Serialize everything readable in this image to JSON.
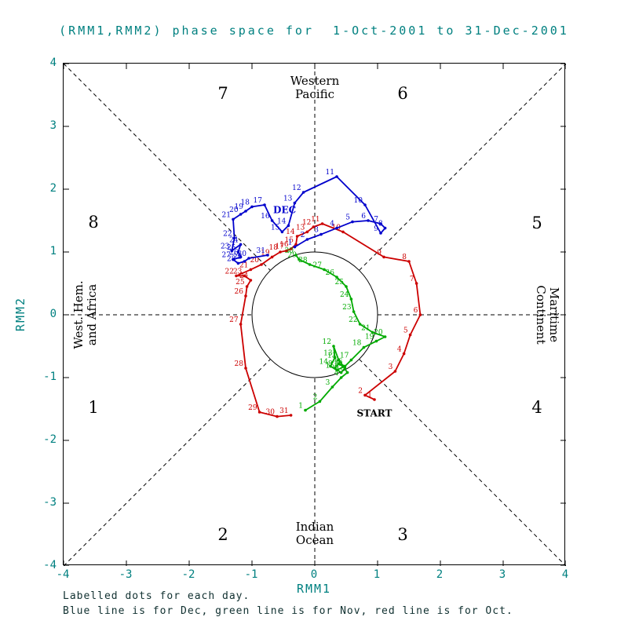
{
  "title": "(RMM1,RMM2) phase space for  1-Oct-2001 to 31-Dec-2001",
  "captions": [
    "Labelled dots for each day.",
    "Blue line is for Dec, green line is for Nov, red line is for Oct."
  ],
  "colors": {
    "title_text": "#008080",
    "frame": "#000000",
    "oct_line": "#cc0000",
    "nov_line": "#00aa00",
    "dec_line": "#0000cc"
  },
  "chart_data": {
    "type": "line",
    "title": "(RMM1,RMM2) phase space for  1-Oct-2001 to 31-Dec-2001",
    "xlabel": "RMM1",
    "ylabel": "RMM2",
    "xlim": [
      -4,
      4
    ],
    "ylim": [
      -4,
      4
    ],
    "ticks": [
      -4,
      -3,
      -2,
      -1,
      0,
      1,
      2,
      3,
      4
    ],
    "unit_circle_radius": 1,
    "grid": "dashed-octant-guides",
    "octant_labels": [
      "1",
      "2",
      "3",
      "4",
      "5",
      "6",
      "7",
      "8"
    ],
    "regions": {
      "top": [
        "Western",
        "Pacific"
      ],
      "bottom": [
        "Indian",
        "Ocean"
      ],
      "left": [
        "West. Hem.",
        "and Africa"
      ],
      "right": [
        "Maritime",
        "Continent"
      ]
    },
    "series": [
      {
        "name": "Oct",
        "color": "#cc0000",
        "points": [
          [
            1,
            0.95,
            -1.35
          ],
          [
            2,
            0.8,
            -1.28
          ],
          [
            3,
            1.28,
            -0.9
          ],
          [
            4,
            1.42,
            -0.62
          ],
          [
            5,
            1.52,
            -0.32
          ],
          [
            6,
            1.68,
            0.0
          ],
          [
            7,
            1.62,
            0.5
          ],
          [
            8,
            1.5,
            0.85
          ],
          [
            9,
            1.1,
            0.92
          ],
          [
            10,
            0.45,
            1.32
          ],
          [
            11,
            0.12,
            1.45
          ],
          [
            12,
            -0.02,
            1.4
          ],
          [
            13,
            -0.12,
            1.32
          ],
          [
            14,
            -0.28,
            1.25
          ],
          [
            15,
            -0.3,
            1.12
          ],
          [
            16,
            -0.38,
            1.05
          ],
          [
            17,
            -0.45,
            1.02
          ],
          [
            18,
            -0.55,
            1.0
          ],
          [
            19,
            -0.68,
            0.92
          ],
          [
            20,
            -0.85,
            0.8
          ],
          [
            21,
            -1.02,
            0.72
          ],
          [
            22,
            -1.25,
            0.62
          ],
          [
            23,
            -1.12,
            0.62
          ],
          [
            24,
            -1.02,
            0.55
          ],
          [
            25,
            -1.08,
            0.45
          ],
          [
            26,
            -1.1,
            0.3
          ],
          [
            27,
            -1.18,
            -0.15
          ],
          [
            28,
            -1.1,
            -0.85
          ],
          [
            29,
            -0.88,
            -1.55
          ],
          [
            30,
            -0.6,
            -1.62
          ],
          [
            31,
            -0.38,
            -1.6
          ]
        ]
      },
      {
        "name": "Nov",
        "color": "#00aa00",
        "points": [
          [
            1,
            -0.15,
            -1.52
          ],
          [
            2,
            0.08,
            -1.38
          ],
          [
            3,
            0.28,
            -1.15
          ],
          [
            4,
            0.42,
            -1.0
          ],
          [
            5,
            0.52,
            -0.92
          ],
          [
            6,
            0.45,
            -0.82
          ],
          [
            7,
            0.38,
            -0.78
          ],
          [
            8,
            0.32,
            -0.85
          ],
          [
            9,
            0.42,
            -0.92
          ],
          [
            10,
            0.48,
            -0.85
          ],
          [
            11,
            0.38,
            -0.72
          ],
          [
            12,
            0.3,
            -0.5
          ],
          [
            13,
            0.32,
            -0.68
          ],
          [
            14,
            0.25,
            -0.82
          ],
          [
            15,
            0.35,
            -0.88
          ],
          [
            16,
            0.48,
            -0.82
          ],
          [
            17,
            0.58,
            -0.72
          ],
          [
            18,
            0.78,
            -0.52
          ],
          [
            19,
            0.98,
            -0.42
          ],
          [
            20,
            1.12,
            -0.35
          ],
          [
            21,
            0.92,
            -0.28
          ],
          [
            22,
            0.72,
            -0.15
          ],
          [
            23,
            0.62,
            0.05
          ],
          [
            24,
            0.58,
            0.25
          ],
          [
            25,
            0.5,
            0.45
          ],
          [
            26,
            0.35,
            0.6
          ],
          [
            27,
            0.15,
            0.72
          ],
          [
            28,
            -0.08,
            0.8
          ],
          [
            29,
            -0.25,
            0.88
          ],
          [
            30,
            -0.3,
            0.95
          ]
        ]
      },
      {
        "name": "Dec",
        "color": "#0000cc",
        "points": [
          [
            1,
            -0.32,
            1.08
          ],
          [
            2,
            -0.12,
            1.2
          ],
          [
            3,
            0.1,
            1.28
          ],
          [
            4,
            0.35,
            1.38
          ],
          [
            5,
            0.6,
            1.48
          ],
          [
            6,
            0.85,
            1.5
          ],
          [
            7,
            1.05,
            1.45
          ],
          [
            8,
            1.12,
            1.38
          ],
          [
            9,
            1.05,
            1.3
          ],
          [
            10,
            0.8,
            1.75
          ],
          [
            11,
            0.35,
            2.2
          ],
          [
            12,
            -0.18,
            1.95
          ],
          [
            13,
            -0.32,
            1.78
          ],
          [
            14,
            -0.42,
            1.42
          ],
          [
            15,
            -0.52,
            1.32
          ],
          [
            16,
            -0.68,
            1.5
          ],
          [
            17,
            -0.8,
            1.75
          ],
          [
            18,
            -1.0,
            1.72
          ],
          [
            19,
            -1.1,
            1.65
          ],
          [
            20,
            -1.18,
            1.6
          ],
          [
            21,
            -1.3,
            1.52
          ],
          [
            22,
            -1.28,
            1.22
          ],
          [
            23,
            -1.32,
            1.02
          ],
          [
            24,
            -1.18,
            1.12
          ],
          [
            25,
            -1.22,
            1.0
          ],
          [
            26,
            -1.18,
            0.92
          ],
          [
            27,
            -1.3,
            0.88
          ],
          [
            28,
            -1.22,
            0.82
          ],
          [
            29,
            -1.12,
            0.85
          ],
          [
            30,
            -1.05,
            0.9
          ],
          [
            31,
            -0.75,
            0.95
          ]
        ]
      }
    ],
    "annotations": [
      {
        "text": "START",
        "x": 0.95,
        "y": -1.62,
        "color": "#000000"
      },
      {
        "text": "DEC",
        "x": -0.48,
        "y": 1.62,
        "color": "#0000cc"
      }
    ]
  }
}
